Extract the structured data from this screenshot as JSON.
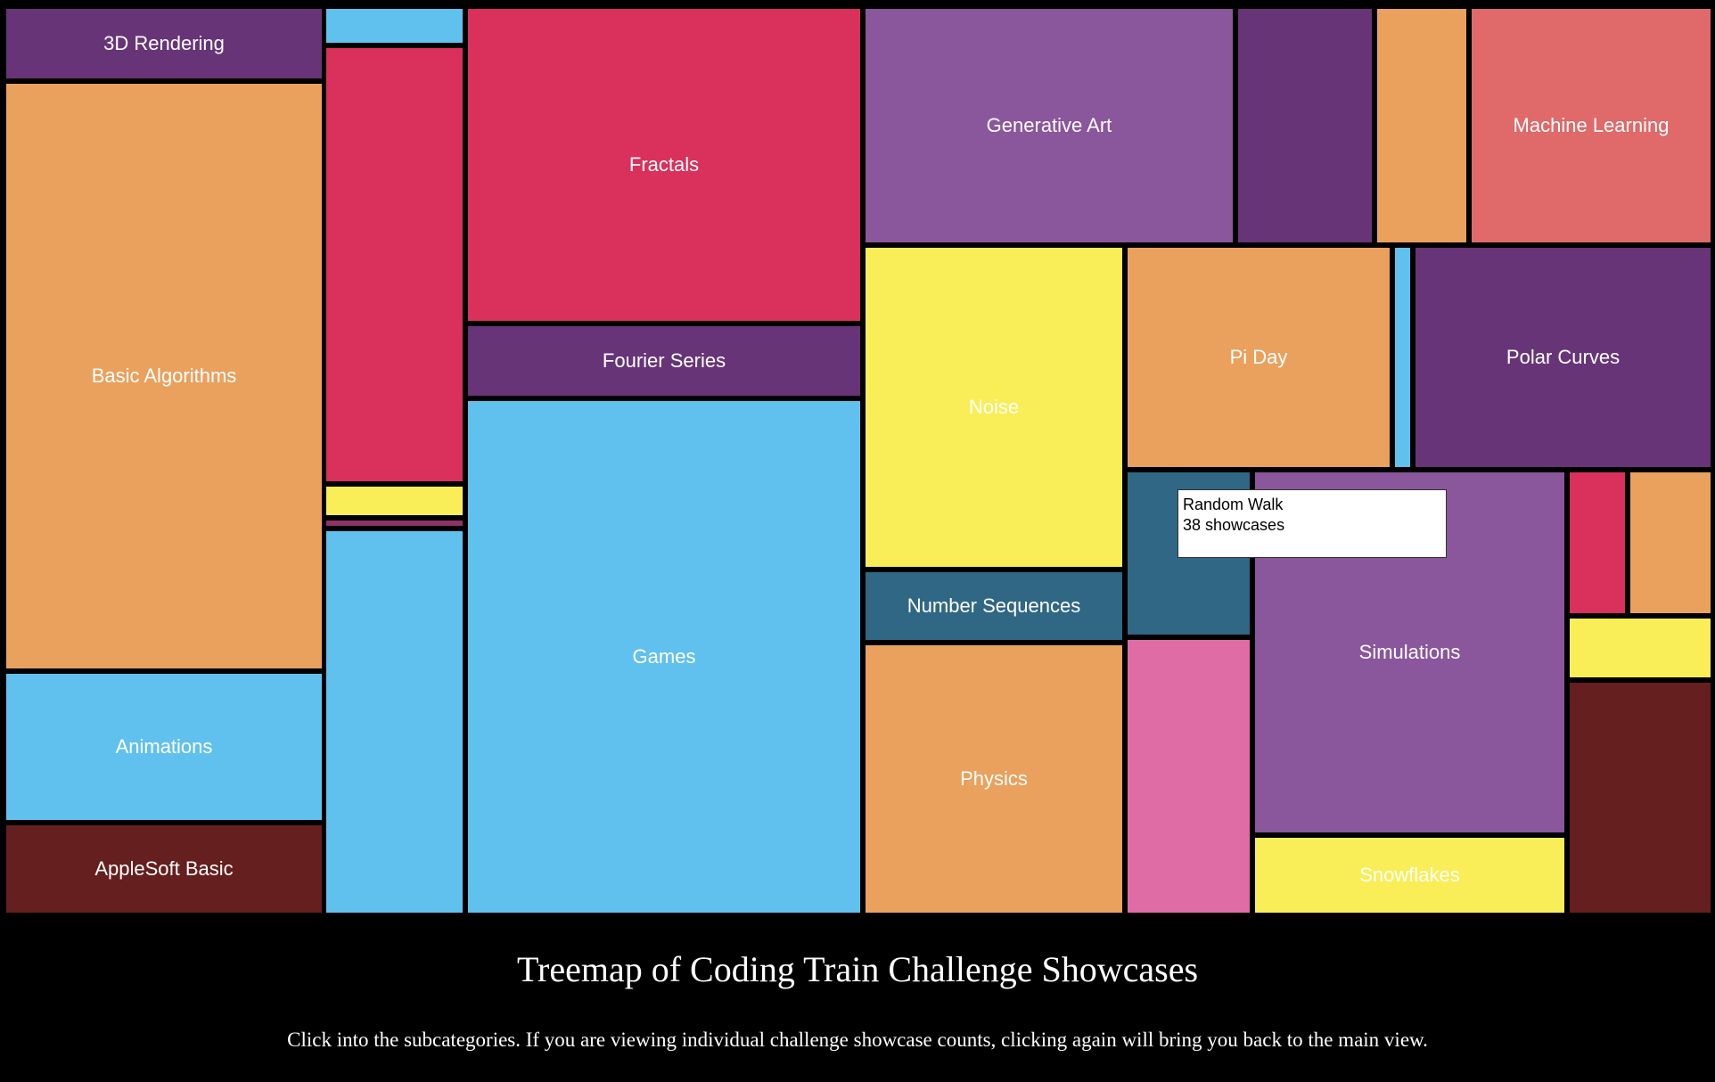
{
  "chart_data": {
    "type": "treemap",
    "title": "Treemap of Coding Train Challenge Showcases",
    "subtitle": "Click into the subcategories. If you are viewing individual challenge showcase counts, clicking again will bring you back to the main view.",
    "categories": [
      {
        "label": "3D Rendering",
        "color": "#673577"
      },
      {
        "label": "Basic Algorithms",
        "color": "#eaa15d"
      },
      {
        "label": "Animations",
        "color": "#61c1ee"
      },
      {
        "label": "AppleSoft Basic",
        "color": "#661f1f"
      },
      {
        "label": "",
        "color": "#61c1ee"
      },
      {
        "label": "",
        "color": "#d9305c"
      },
      {
        "label": "",
        "color": "#f9ee57"
      },
      {
        "label": "",
        "color": "#8c3367"
      },
      {
        "label": "",
        "color": "#61c1ee"
      },
      {
        "label": "Fractals",
        "color": "#d9305c"
      },
      {
        "label": "Fourier Series",
        "color": "#673577"
      },
      {
        "label": "Games",
        "color": "#61c1ee"
      },
      {
        "label": "Generative Art",
        "color": "#8a569c"
      },
      {
        "label": "",
        "color": "#673577"
      },
      {
        "label": "",
        "color": "#eaa15d"
      },
      {
        "label": "Machine Learning",
        "color": "#e06969"
      },
      {
        "label": "Noise",
        "color": "#f9ee57"
      },
      {
        "label": "Number Sequences",
        "color": "#306784"
      },
      {
        "label": "Physics",
        "color": "#eaa15d"
      },
      {
        "label": "Pi Day",
        "color": "#eaa15d"
      },
      {
        "label": "",
        "color": "#61c1ee"
      },
      {
        "label": "Polar Curves",
        "color": "#673577"
      },
      {
        "label": "",
        "color": "#306784"
      },
      {
        "label": "",
        "color": "#df6ca5"
      },
      {
        "label": "Simulations",
        "color": "#8a569c"
      },
      {
        "label": "Snowflakes",
        "color": "#f9ee57"
      },
      {
        "label": "",
        "color": "#d9305c"
      },
      {
        "label": "",
        "color": "#eaa15d"
      },
      {
        "label": "",
        "color": "#f9ee57"
      },
      {
        "label": "",
        "color": "#661f1f"
      }
    ],
    "tooltip": {
      "name": "Random Walk",
      "count_text": "38 showcases"
    }
  }
}
